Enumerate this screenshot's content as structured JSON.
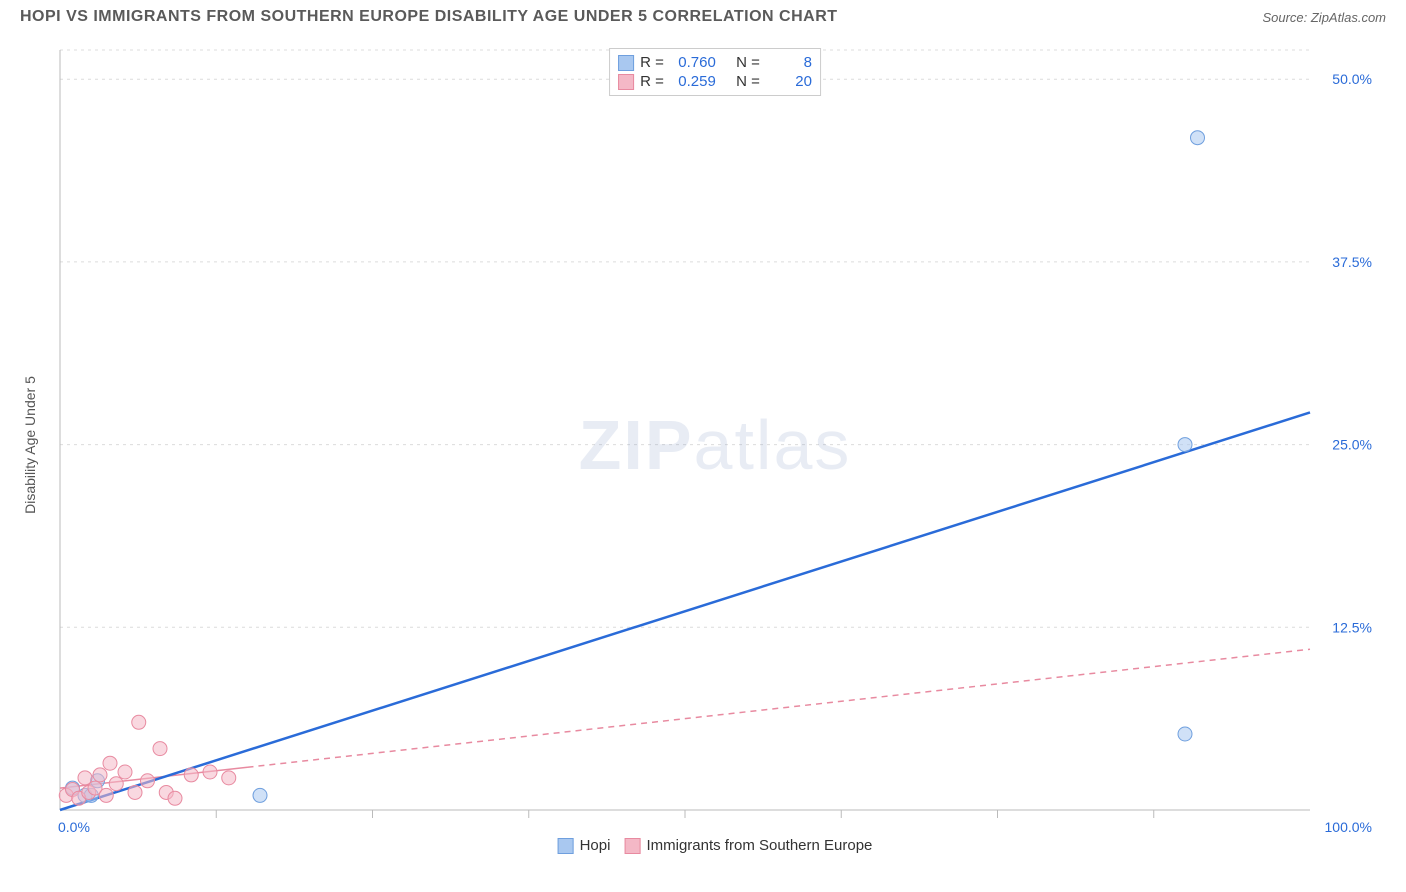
{
  "title": "HOPI VS IMMIGRANTS FROM SOUTHERN EUROPE DISABILITY AGE UNDER 5 CORRELATION CHART",
  "source": "Source: ZipAtlas.com",
  "watermark": "ZIPatlas",
  "y_axis_label": "Disability Age Under 5",
  "chart": {
    "type": "scatter",
    "background_color": "#ffffff",
    "grid_color": "#dcdcdc",
    "axis_color": "#bbbbbb",
    "xlim": [
      0,
      100
    ],
    "ylim": [
      0,
      52
    ],
    "x_ticks": [
      0,
      100
    ],
    "x_tick_labels": [
      "0.0%",
      "100.0%"
    ],
    "x_minor_ticks": [
      12.5,
      25,
      37.5,
      50,
      62.5,
      75,
      87.5
    ],
    "y_ticks": [
      12.5,
      25,
      37.5,
      50
    ],
    "y_tick_labels": [
      "12.5%",
      "25.0%",
      "37.5%",
      "50.0%"
    ],
    "y_grid": [
      12.5,
      25,
      37.5,
      50,
      52
    ],
    "tick_label_color": "#2a6bd8",
    "tick_label_fontsize": 14,
    "marker_radius": 7,
    "marker_opacity": 0.55,
    "series": [
      {
        "name": "Hopi",
        "color_fill": "#a9c8f0",
        "color_stroke": "#6f9fde",
        "R": "0.760",
        "N": "8",
        "trend": {
          "x1": 0,
          "y1": 0,
          "x2": 100,
          "y2": 27.2,
          "color": "#2a6bd8",
          "width": 2.5,
          "dash": "none"
        },
        "points": [
          {
            "x": 1,
            "y": 1.5
          },
          {
            "x": 2,
            "y": 1
          },
          {
            "x": 2.5,
            "y": 1
          },
          {
            "x": 16,
            "y": 1
          },
          {
            "x": 90,
            "y": 5.2
          },
          {
            "x": 90,
            "y": 25
          },
          {
            "x": 91,
            "y": 46
          },
          {
            "x": 3,
            "y": 2
          }
        ]
      },
      {
        "name": "Immigrants from Southern Europe",
        "color_fill": "#f4b8c6",
        "color_stroke": "#e88aa0",
        "R": "0.259",
        "N": "20",
        "trend": {
          "x1": 0,
          "y1": 1.5,
          "x2": 100,
          "y2": 11,
          "color": "#e88aa0",
          "width": 1.5,
          "dash": "6,5"
        },
        "trend_solid_end": 15,
        "points": [
          {
            "x": 0.5,
            "y": 1
          },
          {
            "x": 1,
            "y": 1.4
          },
          {
            "x": 1.5,
            "y": 0.8
          },
          {
            "x": 2,
            "y": 2.2
          },
          {
            "x": 2.3,
            "y": 1.2
          },
          {
            "x": 2.8,
            "y": 1.5
          },
          {
            "x": 3.2,
            "y": 2.4
          },
          {
            "x": 3.7,
            "y": 1
          },
          {
            "x": 4,
            "y": 3.2
          },
          {
            "x": 4.5,
            "y": 1.8
          },
          {
            "x": 5.2,
            "y": 2.6
          },
          {
            "x": 6,
            "y": 1.2
          },
          {
            "x": 6.3,
            "y": 6
          },
          {
            "x": 7,
            "y": 2
          },
          {
            "x": 8,
            "y": 4.2
          },
          {
            "x": 8.5,
            "y": 1.2
          },
          {
            "x": 9.2,
            "y": 0.8
          },
          {
            "x": 10.5,
            "y": 2.4
          },
          {
            "x": 12,
            "y": 2.6
          },
          {
            "x": 13.5,
            "y": 2.2
          }
        ]
      }
    ]
  },
  "legend": {
    "items": [
      {
        "label": "Hopi",
        "fill": "#a9c8f0",
        "stroke": "#6f9fde"
      },
      {
        "label": "Immigrants from Southern Europe",
        "fill": "#f4b8c6",
        "stroke": "#e88aa0"
      }
    ]
  }
}
